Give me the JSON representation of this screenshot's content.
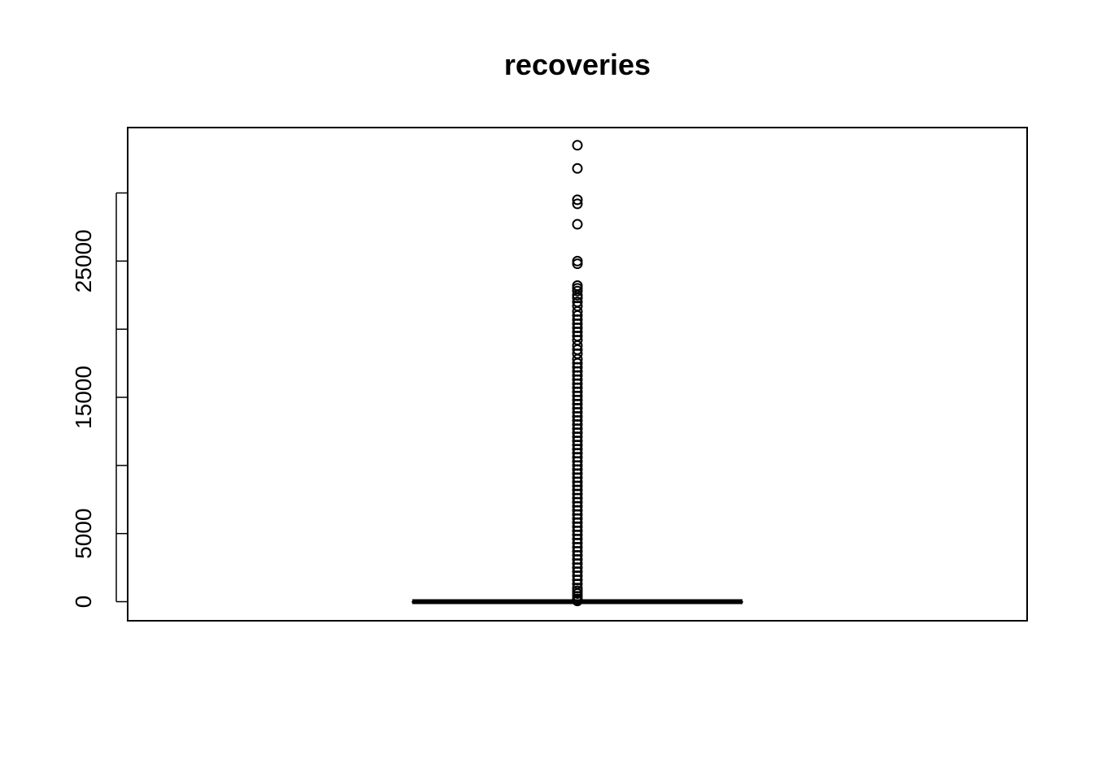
{
  "chart_data": {
    "type": "boxplot",
    "title": "recoveries",
    "xlabel": "",
    "ylabel": "",
    "ylim": [
      -1400,
      34800
    ],
    "y_ticks": [
      0,
      5000,
      10000,
      15000,
      20000,
      25000,
      30000
    ],
    "y_tick_labels": [
      "0",
      "5000",
      "",
      "15000",
      "",
      "25000",
      ""
    ],
    "grid": false,
    "colors": {
      "box": "#000000",
      "median": "#000000",
      "outlier": "#000000",
      "background": "#ffffff"
    },
    "box": {
      "min": 0,
      "q1": 0,
      "median": 0,
      "q3": 0,
      "max": 0
    },
    "outliers": [
      33500,
      31800,
      29500,
      29200,
      27700,
      25000,
      24800,
      23200,
      23000,
      22800,
      22500,
      22300,
      22000,
      21700,
      21300,
      21000,
      20700,
      20400,
      20100,
      19800,
      19500,
      19200,
      18800,
      18500,
      18200,
      17800,
      17500,
      17200,
      16900,
      16600,
      16300,
      16000,
      15700,
      15400,
      15100,
      14800,
      14500,
      14200,
      13900,
      13600,
      13300,
      13000,
      12700,
      12400,
      12100,
      11800,
      11500,
      11200,
      10900,
      10600,
      10300,
      10000,
      9700,
      9400,
      9100,
      8800,
      8500,
      8200,
      7900,
      7600,
      7300,
      7000,
      6700,
      6400,
      6100,
      5800,
      5500,
      5200,
      4900,
      4600,
      4300,
      4000,
      3700,
      3400,
      3100,
      2800,
      2500,
      2200,
      1900,
      1600,
      1300,
      1000,
      800,
      600,
      400,
      200,
      100,
      50
    ]
  }
}
